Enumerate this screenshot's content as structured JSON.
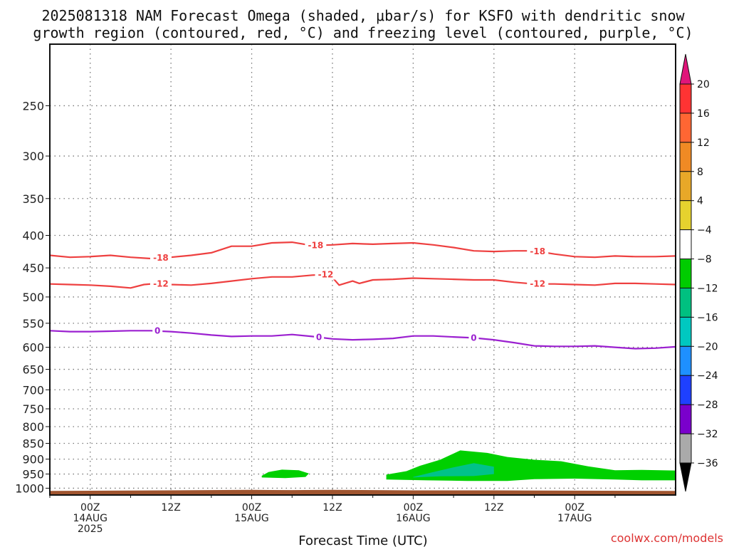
{
  "title_line1": "2025081318 NAM Forecast Omega (shaded, μbar/s) for KSFO with dendritic snow",
  "title_line2": "growth region (contoured, red, °C) and freezing level (contoured, purple, °C)",
  "credit": "coolwx.com/models",
  "chart_data": {
    "type": "time-height cross section",
    "xlabel": "Forecast Time (UTC)",
    "ylabel": "",
    "x_range_hours": [
      -6,
      87
    ],
    "y_range_hpa": [
      200,
      1025
    ],
    "y_scale": "log-pressure",
    "grid": true,
    "y_ticks": [
      250,
      300,
      350,
      400,
      450,
      500,
      550,
      600,
      650,
      700,
      750,
      800,
      850,
      900,
      950,
      1000
    ],
    "x_ticks": [
      {
        "h": 0,
        "line1": "00Z",
        "line2": "14AUG",
        "line3": "2025"
      },
      {
        "h": 12,
        "line1": "12Z",
        "line2": "",
        "line3": ""
      },
      {
        "h": 24,
        "line1": "00Z",
        "line2": "15AUG",
        "line3": ""
      },
      {
        "h": 36,
        "line1": "12Z",
        "line2": "",
        "line3": ""
      },
      {
        "h": 48,
        "line1": "00Z",
        "line2": "16AUG",
        "line3": ""
      },
      {
        "h": 60,
        "line1": "12Z",
        "line2": "",
        "line3": ""
      },
      {
        "h": 72,
        "line1": "00Z",
        "line2": "17AUG",
        "line3": ""
      }
    ],
    "colorbar": {
      "units": "μbar/s",
      "labels": [
        "20",
        "16",
        "12",
        "8",
        "4",
        "−4",
        "−8",
        "−12",
        "−16",
        "−20",
        "−24",
        "−28",
        "−32",
        "−36"
      ],
      "colors": [
        "#ff3333",
        "#ff6633",
        "#f08a24",
        "#e8a828",
        "#e6d22e",
        "#ffffff",
        "#00cc00",
        "#00c080",
        "#00c8c0",
        "#1e90ff",
        "#1e40ff",
        "#7a00cc",
        "#9900bb",
        "#aaaaaa"
      ],
      "top_arrow_color": "#e0157a",
      "bottom_arrow_color": "#000000"
    },
    "contours": [
      {
        "label": "-18",
        "color": "#ee4040",
        "label_hours": [
          10.5,
          33.5,
          66.5
        ],
        "points": [
          [
            -6,
            430
          ],
          [
            -3,
            433
          ],
          [
            0,
            432
          ],
          [
            3,
            430
          ],
          [
            6,
            433
          ],
          [
            9,
            435
          ],
          [
            12,
            433
          ],
          [
            15,
            430
          ],
          [
            18,
            426
          ],
          [
            21,
            416
          ],
          [
            24,
            416
          ],
          [
            27,
            411
          ],
          [
            30,
            410
          ],
          [
            33,
            415
          ],
          [
            36,
            414
          ],
          [
            39,
            412
          ],
          [
            42,
            413
          ],
          [
            45,
            412
          ],
          [
            48,
            411
          ],
          [
            51,
            414
          ],
          [
            54,
            418
          ],
          [
            57,
            423
          ],
          [
            60,
            424
          ],
          [
            63,
            423
          ],
          [
            66,
            423
          ],
          [
            69,
            428
          ],
          [
            72,
            432
          ],
          [
            75,
            433
          ],
          [
            78,
            431
          ],
          [
            81,
            432
          ],
          [
            84,
            432
          ],
          [
            87,
            431
          ]
        ]
      },
      {
        "label": "-12",
        "color": "#ee4040",
        "label_hours": [
          10.5,
          35.0,
          66.5
        ],
        "points": [
          [
            -6,
            477
          ],
          [
            -3,
            478
          ],
          [
            0,
            479
          ],
          [
            3,
            481
          ],
          [
            6,
            484
          ],
          [
            8,
            478
          ],
          [
            10,
            476
          ],
          [
            12,
            478
          ],
          [
            15,
            479
          ],
          [
            18,
            476
          ],
          [
            21,
            472
          ],
          [
            24,
            468
          ],
          [
            27,
            465
          ],
          [
            30,
            465
          ],
          [
            33,
            462
          ],
          [
            35,
            461
          ],
          [
            36,
            466
          ],
          [
            37,
            479
          ],
          [
            39,
            472
          ],
          [
            40,
            476
          ],
          [
            42,
            470
          ],
          [
            45,
            469
          ],
          [
            48,
            467
          ],
          [
            51,
            468
          ],
          [
            54,
            469
          ],
          [
            57,
            470
          ],
          [
            60,
            470
          ],
          [
            63,
            474
          ],
          [
            66,
            477
          ],
          [
            69,
            477
          ],
          [
            72,
            478
          ],
          [
            75,
            479
          ],
          [
            78,
            476
          ],
          [
            81,
            476
          ],
          [
            84,
            477
          ],
          [
            87,
            478
          ]
        ]
      },
      {
        "label": "0",
        "color": "#9b20d0",
        "label_hours": [
          10.0,
          34.0,
          57.0
        ],
        "points": [
          [
            -6,
            565
          ],
          [
            -3,
            567
          ],
          [
            0,
            567
          ],
          [
            3,
            566
          ],
          [
            6,
            565
          ],
          [
            9,
            565
          ],
          [
            12,
            567
          ],
          [
            15,
            570
          ],
          [
            18,
            574
          ],
          [
            21,
            577
          ],
          [
            24,
            576
          ],
          [
            27,
            576
          ],
          [
            30,
            573
          ],
          [
            33,
            577
          ],
          [
            36,
            582
          ],
          [
            39,
            584
          ],
          [
            42,
            583
          ],
          [
            45,
            581
          ],
          [
            48,
            576
          ],
          [
            51,
            576
          ],
          [
            54,
            578
          ],
          [
            57,
            580
          ],
          [
            60,
            584
          ],
          [
            63,
            590
          ],
          [
            66,
            597
          ],
          [
            69,
            598
          ],
          [
            72,
            598
          ],
          [
            75,
            597
          ],
          [
            78,
            600
          ],
          [
            81,
            603
          ],
          [
            84,
            602
          ],
          [
            87,
            599
          ]
        ]
      }
    ],
    "shaded_regions": [
      {
        "value_range": "-8 to -4",
        "color": "#00d000",
        "outline": [
          [
            25.5,
            956
          ],
          [
            26.5,
            943
          ],
          [
            28.5,
            935
          ],
          [
            31,
            937
          ],
          [
            32.5,
            948
          ],
          [
            32,
            960
          ],
          [
            29,
            964
          ],
          [
            25.5,
            962
          ]
        ]
      },
      {
        "value_range": "-8 to -4",
        "color": "#00d000",
        "outline": [
          [
            44,
            952
          ],
          [
            47,
            940
          ],
          [
            49,
            922
          ],
          [
            52,
            902
          ],
          [
            55,
            872
          ],
          [
            59,
            880
          ],
          [
            62,
            893
          ],
          [
            66,
            902
          ],
          [
            70,
            907
          ],
          [
            74,
            924
          ],
          [
            78,
            937
          ],
          [
            82,
            936
          ],
          [
            87,
            938
          ],
          [
            87,
            972
          ],
          [
            82,
            972
          ],
          [
            78,
            969
          ],
          [
            72,
            966
          ],
          [
            66,
            968
          ],
          [
            62,
            974
          ],
          [
            56,
            974
          ],
          [
            50,
            972
          ],
          [
            44,
            969
          ]
        ]
      },
      {
        "value_range": "-12 to -8",
        "color": "#00c28a",
        "outline": [
          [
            48,
            960
          ],
          [
            51,
            943
          ],
          [
            54,
            927
          ],
          [
            57,
            913
          ],
          [
            60,
            925
          ],
          [
            60,
            950
          ],
          [
            57,
            957
          ],
          [
            52,
            958
          ],
          [
            48,
            962
          ]
        ]
      }
    ],
    "ground": {
      "color": "#a05530",
      "top_hpa": [
        [
          -6,
          1010
        ],
        [
          24,
          1006
        ],
        [
          30,
          1007
        ],
        [
          36,
          1006
        ],
        [
          48,
          1008
        ],
        [
          60,
          1008
        ],
        [
          72,
          1009
        ],
        [
          87,
          1010
        ]
      ]
    }
  }
}
